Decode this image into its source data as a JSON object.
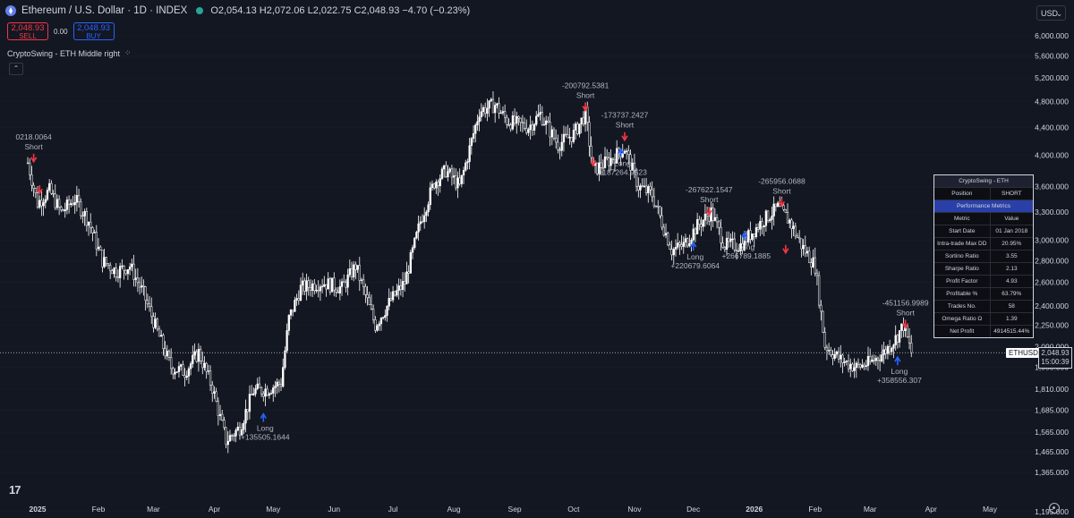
{
  "header": {
    "title": "Ethereum / U.S. Dollar · 1D · INDEX",
    "ohlc": "O2,054.13 H2,072.06 L2,022.75 C2,048.93 −4.70 (−0.23%)"
  },
  "trade": {
    "sell_price": "2,048.93",
    "sell_label": "SELL",
    "spread": "0.00",
    "buy_price": "2,048.93",
    "buy_label": "BUY"
  },
  "indicator_label": "CryptoSwing - ETH Middle right",
  "currency": "USD",
  "price_tag": {
    "symbol": "ETHUSD",
    "price": "2,048.93",
    "countdown": "15:00:39"
  },
  "metrics_table": {
    "title": "CryptoSwing - ETH",
    "position_label": "Position",
    "position_value": "SHORT",
    "section": "Performance Metrics",
    "col_metric": "Metric",
    "col_value": "Value",
    "rows": [
      {
        "k": "Start Date",
        "v": "01 Jan 2018"
      },
      {
        "k": "Intra-trade Max DD",
        "v": "20.95%"
      },
      {
        "k": "Sortino Ratio",
        "v": "3.55"
      },
      {
        "k": "Sharpe Ratio",
        "v": "2.13"
      },
      {
        "k": "Profit Factor",
        "v": "4.93"
      },
      {
        "k": "Profitable %",
        "v": "63.79%"
      },
      {
        "k": "Trades No.",
        "v": "58"
      },
      {
        "k": "Omega Ratio Ω",
        "v": "1.39"
      },
      {
        "k": "Net Profit",
        "v": "4914515.44%"
      }
    ]
  },
  "colors": {
    "bg": "#131722",
    "candle": "#ffffff",
    "long": "#2962ff",
    "short": "#f23645",
    "text": "#d1d4dc",
    "grid": "#1e222d"
  },
  "icons": [
    "ethereum-icon",
    "live-status-dot",
    "indicator-settings-icon",
    "collapse-chevron-icon",
    "tradingview-logo",
    "settings-gear-icon"
  ],
  "chart_data": {
    "type": "candlestick",
    "title": "Ethereum / U.S. Dollar · 1D · INDEX",
    "y_scale": "log",
    "y_ticks": [
      1195,
      1365,
      1465,
      1565,
      1685,
      1810,
      1950,
      2090,
      2250,
      2400,
      2600,
      2800,
      3000,
      3300,
      3600,
      4000,
      4400,
      4800,
      5200,
      5600,
      6000
    ],
    "y_tick_labels": [
      "1,195.000",
      "1,365.000",
      "1,465.000",
      "1,565.000",
      "1,685.000",
      "1,810.000",
      "1,950.000",
      "2,090.000",
      "2,250.000",
      "2,400.000",
      "2,600.000",
      "2,800.000",
      "3,000.000",
      "3,300.000",
      "3,600.000",
      "4,000.000",
      "4,400.000",
      "4,800.000",
      "5,200.000",
      "5,600.000",
      "6,000.000"
    ],
    "x_ticks": [
      {
        "label": "2025",
        "date": "2025-01-01",
        "bold": true
      },
      {
        "label": "Feb",
        "date": "2025-02-01"
      },
      {
        "label": "Mar",
        "date": "2025-03-01"
      },
      {
        "label": "Apr",
        "date": "2025-04-01"
      },
      {
        "label": "May",
        "date": "2025-05-01"
      },
      {
        "label": "Jun",
        "date": "2025-06-01"
      },
      {
        "label": "Jul",
        "date": "2025-07-01"
      },
      {
        "label": "Aug",
        "date": "2025-08-01"
      },
      {
        "label": "Sep",
        "date": "2025-09-01"
      },
      {
        "label": "Oct",
        "date": "2025-10-01"
      },
      {
        "label": "Nov",
        "date": "2025-11-01"
      },
      {
        "label": "Dec",
        "date": "2025-12-01"
      },
      {
        "label": "2026",
        "date": "2026-01-01",
        "bold": true
      },
      {
        "label": "Feb",
        "date": "2026-02-01"
      },
      {
        "label": "Mar",
        "date": "2026-03-01"
      },
      {
        "label": "Apr",
        "date": "2026-04-01"
      },
      {
        "label": "May",
        "date": "2026-05-01"
      }
    ],
    "price_path": [
      [
        "2024-12-27",
        3900
      ],
      [
        "2025-01-01",
        3400
      ],
      [
        "2025-01-07",
        3550
      ],
      [
        "2025-01-13",
        3300
      ],
      [
        "2025-01-20",
        3450
      ],
      [
        "2025-01-27",
        3200
      ],
      [
        "2025-02-03",
        2800
      ],
      [
        "2025-02-10",
        2700
      ],
      [
        "2025-02-17",
        2750
      ],
      [
        "2025-02-24",
        2500
      ],
      [
        "2025-03-03",
        2200
      ],
      [
        "2025-03-10",
        1950
      ],
      [
        "2025-03-17",
        1920
      ],
      [
        "2025-03-24",
        2050
      ],
      [
        "2025-03-31",
        1820
      ],
      [
        "2025-04-07",
        1520
      ],
      [
        "2025-04-14",
        1590
      ],
      [
        "2025-04-21",
        1800
      ],
      [
        "2025-04-28",
        1810
      ],
      [
        "2025-05-05",
        1850
      ],
      [
        "2025-05-09",
        2300
      ],
      [
        "2025-05-15",
        2550
      ],
      [
        "2025-05-26",
        2600
      ],
      [
        "2025-06-05",
        2550
      ],
      [
        "2025-06-12",
        2750
      ],
      [
        "2025-06-22",
        2250
      ],
      [
        "2025-06-30",
        2450
      ],
      [
        "2025-07-07",
        2600
      ],
      [
        "2025-07-15",
        3200
      ],
      [
        "2025-07-22",
        3650
      ],
      [
        "2025-07-28",
        3800
      ],
      [
        "2025-08-04",
        3600
      ],
      [
        "2025-08-14",
        4650
      ],
      [
        "2025-08-22",
        4750
      ],
      [
        "2025-08-28",
        4500
      ],
      [
        "2025-09-08",
        4400
      ],
      [
        "2025-09-14",
        4600
      ],
      [
        "2025-09-23",
        4150
      ],
      [
        "2025-10-01",
        4300
      ],
      [
        "2025-10-07",
        4600
      ],
      [
        "2025-10-11",
        3800
      ],
      [
        "2025-10-20",
        3950
      ],
      [
        "2025-10-27",
        4100
      ],
      [
        "2025-11-03",
        3600
      ],
      [
        "2025-11-10",
        3500
      ],
      [
        "2025-11-20",
        2900
      ],
      [
        "2025-11-26",
        2950
      ],
      [
        "2025-12-03",
        3150
      ],
      [
        "2025-12-10",
        3300
      ],
      [
        "2025-12-17",
        2950
      ],
      [
        "2025-12-25",
        2950
      ],
      [
        "2026-01-05",
        3200
      ],
      [
        "2026-01-13",
        3350
      ],
      [
        "2026-01-19",
        3200
      ],
      [
        "2026-01-25",
        2950
      ],
      [
        "2026-02-01",
        2750
      ],
      [
        "2026-02-06",
        2100
      ],
      [
        "2026-02-14",
        2000
      ],
      [
        "2026-02-22",
        1950
      ],
      [
        "2026-03-01",
        1980
      ],
      [
        "2026-03-08",
        2050
      ],
      [
        "2026-03-14",
        2150
      ],
      [
        "2026-03-18",
        2250
      ],
      [
        "2026-03-22",
        2048.93
      ]
    ],
    "last_price": 2048.93,
    "signals": [
      {
        "type": "short",
        "date": "2024-12-30",
        "price": 3950,
        "label": "Short",
        "value": "0218.0064"
      },
      {
        "type": "short",
        "date": "2025-01-02",
        "price": 3550
      },
      {
        "type": "long",
        "date": "2025-04-26",
        "price": 1650,
        "label": "Long",
        "value": "+135505.1644"
      },
      {
        "type": "short",
        "date": "2025-10-07",
        "price": 4700,
        "label": "Short",
        "value": "-200792.5381"
      },
      {
        "type": "short",
        "date": "2025-10-11",
        "price": 3900
      },
      {
        "type": "long",
        "date": "2025-10-25",
        "price": 4050,
        "label": "Long",
        "value": "+187264.9523"
      },
      {
        "type": "short",
        "date": "2025-10-27",
        "price": 4250,
        "label": "Short",
        "value": "-173737.2427"
      },
      {
        "type": "long",
        "date": "2025-12-01",
        "price": 2950,
        "label": "Long",
        "value": "+220679.6064"
      },
      {
        "type": "short",
        "date": "2025-12-09",
        "price": 3300,
        "label": "Short",
        "value": "-267622.1547"
      },
      {
        "type": "long",
        "date": "2025-12-27",
        "price": 3050,
        "label": "Long",
        "value": "+266789.1885"
      },
      {
        "type": "short",
        "date": "2026-01-15",
        "price": 3400,
        "label": "Short",
        "value": "-265956.0688"
      },
      {
        "type": "short",
        "date": "2026-01-17",
        "price": 2900
      },
      {
        "type": "long",
        "date": "2026-03-15",
        "price": 2000,
        "label": "Long",
        "value": "+358556.307"
      },
      {
        "type": "short",
        "date": "2026-03-19",
        "price": 2250,
        "label": "Short",
        "value": "-451156.9989"
      }
    ]
  }
}
